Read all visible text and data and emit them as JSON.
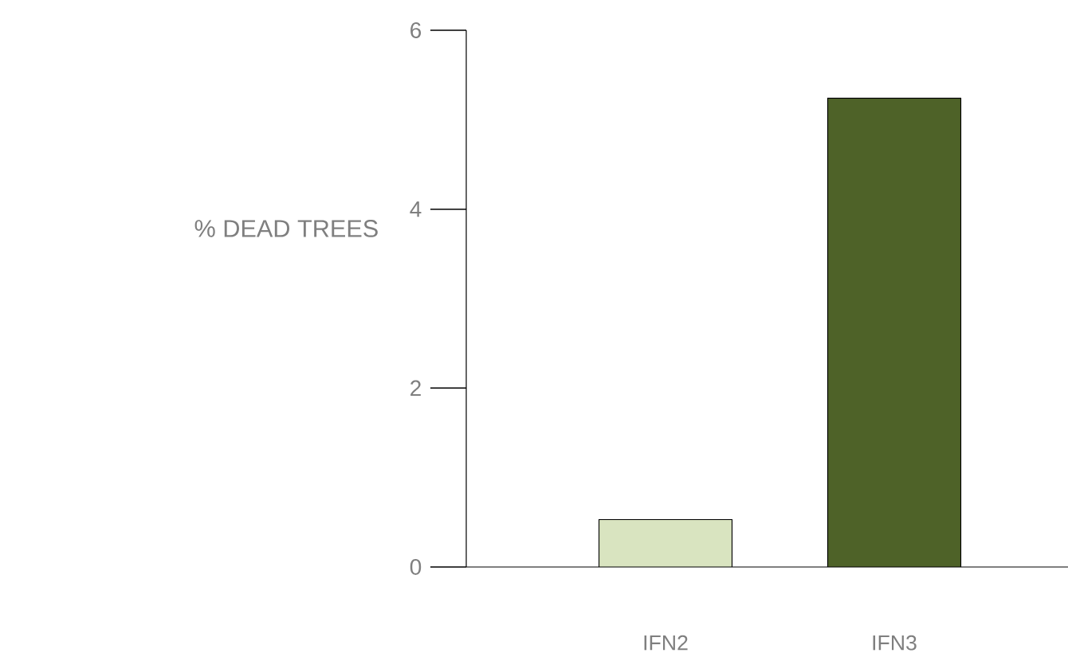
{
  "chart_data": {
    "type": "bar",
    "ylabel": "% DEAD TREES",
    "categories": [
      "IFN2",
      "IFN3"
    ],
    "values": [
      0.53,
      5.24
    ],
    "colors": [
      "#d9e4c0",
      "#4e6228"
    ],
    "ylim": [
      0,
      6
    ],
    "yticks": [
      0,
      2,
      4,
      6
    ],
    "grid": false
  }
}
